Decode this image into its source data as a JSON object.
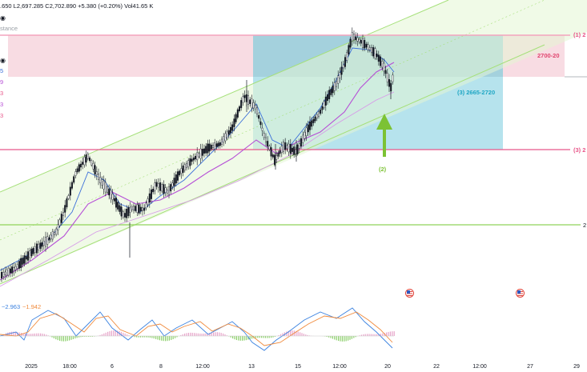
{
  "legend": {
    "ohlc_text": ".650 L2,697.285 C2,702.890 +5.380 (+0.20%) Vol41.65 K",
    "sub_text": "stance",
    "osc_value_1": "−2.963",
    "osc_value_2": "−1.942"
  },
  "left_gutter_digits": [
    "5",
    "9",
    "3",
    "3",
    "3"
  ],
  "annotations": {
    "target_zone": "2700-20",
    "box_label": "(3) 2665-2720",
    "wave_2": "(2)",
    "right_1": "(1) 2",
    "right_3": "(3) 2",
    "right_price": "2"
  },
  "x_axis": [
    "2025",
    "18:00",
    "6",
    "8",
    "12:00",
    "13",
    "15",
    "12:00",
    "20",
    "22",
    "12:00",
    "27",
    "29"
  ],
  "colors": {
    "pink_line": "#e8578a",
    "green_line": "#8fd35a",
    "channel": "#a6e07a",
    "box_fill": "#a5dde8",
    "target_fill": "#f6d3dc",
    "arrow": "#7cc234",
    "ma_purple": "#b64fd6",
    "ma_blue": "#3b6fd9",
    "macd_blue": "#3b82e0",
    "macd_orange": "#f08a3c"
  },
  "icons": [
    "eye-icon",
    "economic-event-flag-icon"
  ]
}
